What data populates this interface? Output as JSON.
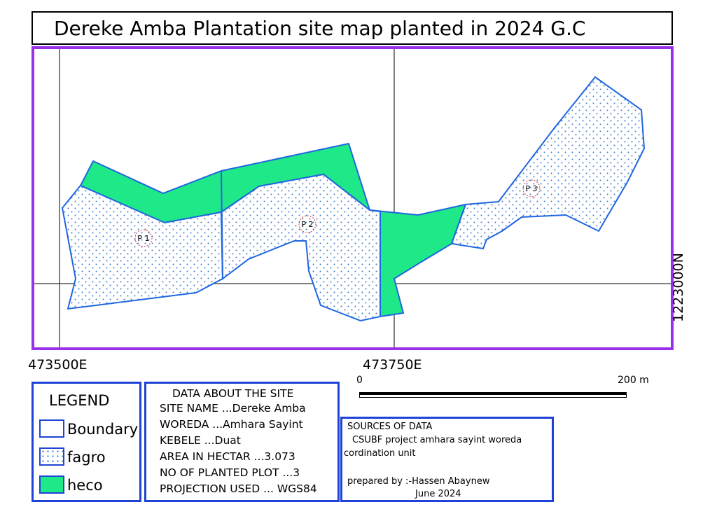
{
  "title": "Dereke Amba Plantation site map planted in 2024 G.C",
  "map": {
    "coord_labels": {
      "x1": "473500E",
      "x2": "473750E",
      "y1": "1223000N"
    },
    "plots": [
      {
        "label": "P 1"
      },
      {
        "label": "P 2"
      },
      {
        "label": "P 3"
      }
    ],
    "colors": {
      "frame": "#9b30e8",
      "boundary": "#1f66e0",
      "fagro_dot": "#3a78c8",
      "heco": "#1ee887",
      "panel_border": "#1f43d6"
    }
  },
  "scalebar": {
    "start_label": "0",
    "end_label": "200 m"
  },
  "legend": {
    "title": "LEGEND",
    "items": [
      {
        "label": "Boundary",
        "swatch": "boundary"
      },
      {
        "label": "fagro",
        "swatch": "fagro"
      },
      {
        "label": "heco",
        "swatch": "heco"
      }
    ]
  },
  "site_data": {
    "heading": "DATA ABOUT THE SITE",
    "lines": [
      "SITE NAME ...Dereke Amba",
      "WOREDA ...Amhara Sayint",
      "KEBELE ...Duat",
      "AREA IN HECTAR ...3.073",
      "NO OF PLANTED PLOT ...3",
      "PROJECTION USED ... WGS84"
    ]
  },
  "sources": {
    "heading": "SOURCES OF DATA",
    "line1": "CSUBF  project  amhara  sayint  woreda",
    "line2": "cordination unit",
    "prepared_by": "prepared by :-Hassen Abaynew",
    "date": "June 2024"
  }
}
